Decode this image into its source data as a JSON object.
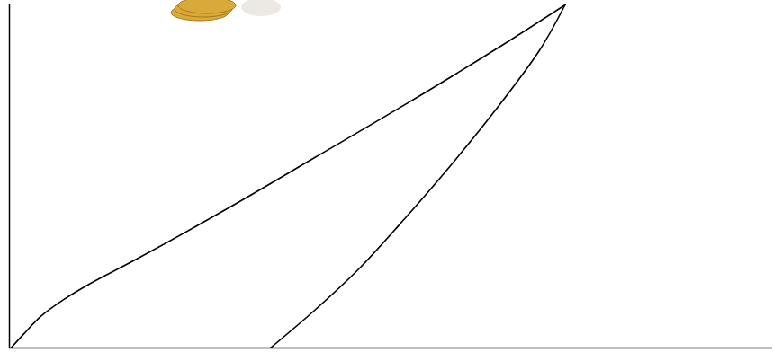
{
  "chart_data": {
    "type": "line",
    "xlim": [
      0,
      100
    ],
    "ylim": [
      0,
      100
    ],
    "tick_labels": false,
    "grid": false,
    "series": [
      {
        "color": "#000000",
        "x": [
          0.2,
          1.8,
          4.1,
          7.1,
          10.6,
          16.5,
          28.3,
          40.0,
          51.8,
          63.6,
          72.8
        ],
        "values": [
          0,
          3.9,
          9.2,
          14.1,
          18.8,
          25.7,
          40.3,
          55.5,
          70.9,
          86.9,
          100
        ]
      },
      {
        "color": "#000000",
        "x": [
          34.2,
          40.0,
          45.9,
          51.8,
          57.7,
          63.6,
          69.5,
          72.8
        ],
        "values": [
          0,
          11.0,
          23.3,
          37.7,
          52.9,
          69.1,
          86.9,
          100
        ]
      }
    ]
  }
}
